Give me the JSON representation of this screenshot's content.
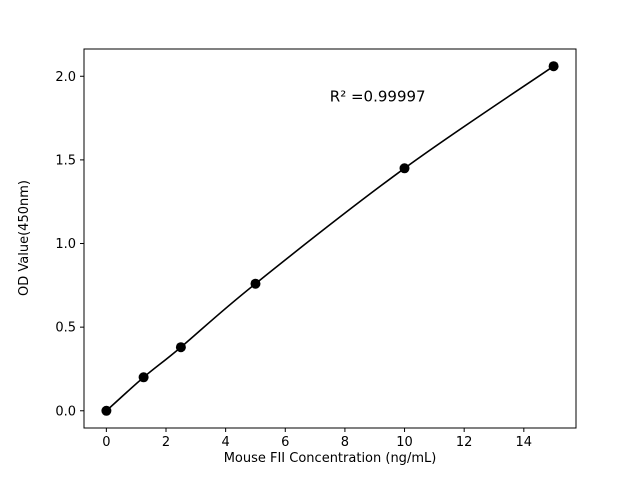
{
  "chart_data": {
    "type": "scatter",
    "x": [
      0,
      1.25,
      2.5,
      5,
      10,
      15
    ],
    "y": [
      0.0,
      0.2,
      0.38,
      0.76,
      1.45,
      2.06
    ],
    "title": "",
    "xlabel": "Mouse FII Concentration (ng/mL)",
    "ylabel": "OD Value(450nm)",
    "annotation": "R² =0.99997",
    "annotation_xy": [
      9.1,
      1.85
    ],
    "xlim": [
      -0.75,
      15.75
    ],
    "ylim": [
      -0.103,
      2.163
    ],
    "xticks": [
      0,
      2,
      4,
      6,
      8,
      10,
      12,
      14
    ],
    "xtick_labels": [
      "0",
      "2",
      "4",
      "6",
      "8",
      "10",
      "12",
      "14"
    ],
    "yticks": [
      0.0,
      0.5,
      1.0,
      1.5,
      2.0
    ],
    "ytick_labels": [
      "0.0",
      "0.5",
      "1.0",
      "1.5",
      "2.0"
    ],
    "legend": null,
    "grid": false,
    "colors": {
      "line": "#000000",
      "marker": "#000000",
      "spine": "#000000",
      "text": "#000000",
      "background": "#ffffff"
    },
    "marker_radius": 5,
    "line_width": 1.6
  }
}
